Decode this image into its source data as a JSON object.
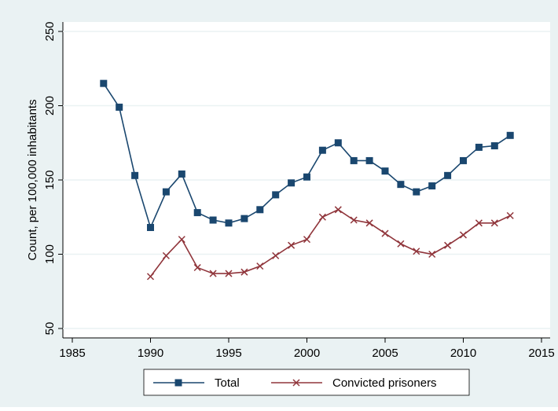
{
  "chart_data": {
    "type": "line",
    "y_label": "Count, per 100,000 inhabitants",
    "x": [
      1987,
      1988,
      1989,
      1990,
      1991,
      1992,
      1993,
      1994,
      1995,
      1996,
      1997,
      1998,
      1999,
      2000,
      2001,
      2002,
      2003,
      2004,
      2005,
      2006,
      2007,
      2008,
      2009,
      2010,
      2011,
      2012,
      2013
    ],
    "series": [
      {
        "name": "Total",
        "color": "#1a476f",
        "marker": "square",
        "values": [
          215,
          199,
          153,
          118,
          142,
          154,
          128,
          123,
          121,
          124,
          130,
          140,
          148,
          152,
          170,
          175,
          163,
          163,
          156,
          147,
          142,
          146,
          153,
          163,
          172,
          173,
          180
        ]
      },
      {
        "name": "Convicted prisoners",
        "color": "#90353b",
        "marker": "x",
        "values": [
          null,
          null,
          null,
          85,
          99,
          110,
          91,
          87,
          87,
          88,
          92,
          99,
          106,
          110,
          125,
          130,
          123,
          121,
          114,
          107,
          102,
          100,
          106,
          113,
          121,
          121,
          126
        ]
      }
    ],
    "xlim": [
      1985,
      2015
    ],
    "xticks": [
      1985,
      1990,
      1995,
      2000,
      2005,
      2010,
      2015
    ],
    "ylim": [
      50,
      250
    ],
    "yticks": [
      50,
      100,
      150,
      200,
      250
    ],
    "grid": true,
    "legend": "bottom"
  }
}
